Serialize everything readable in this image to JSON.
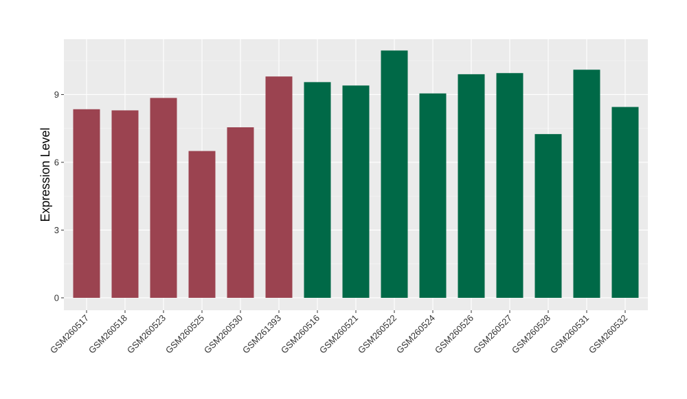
{
  "chart_data": {
    "type": "bar",
    "ylabel": "Expression Level",
    "xlabel": "",
    "ylim": [
      -0.55,
      11.45
    ],
    "yticks": [
      0,
      3,
      6,
      9
    ],
    "categories": [
      "GSM260517",
      "GSM260518",
      "GSM260523",
      "GSM260525",
      "GSM260530",
      "GSM261393",
      "GSM260516",
      "GSM260521",
      "GSM260522",
      "GSM260524",
      "GSM260526",
      "GSM260527",
      "GSM260528",
      "GSM260531",
      "GSM260532"
    ],
    "values": [
      8.35,
      8.3,
      8.85,
      6.5,
      7.55,
      9.8,
      9.55,
      9.4,
      10.95,
      9.05,
      9.9,
      9.95,
      7.25,
      10.1,
      8.45
    ],
    "bar_colors": [
      "#9b4350",
      "#9b4350",
      "#9b4350",
      "#9b4350",
      "#9b4350",
      "#9b4350",
      "#006947",
      "#006947",
      "#006947",
      "#006947",
      "#006947",
      "#006947",
      "#006947",
      "#006947",
      "#006947"
    ],
    "panel_background": "#ebebeb",
    "grid": true
  }
}
